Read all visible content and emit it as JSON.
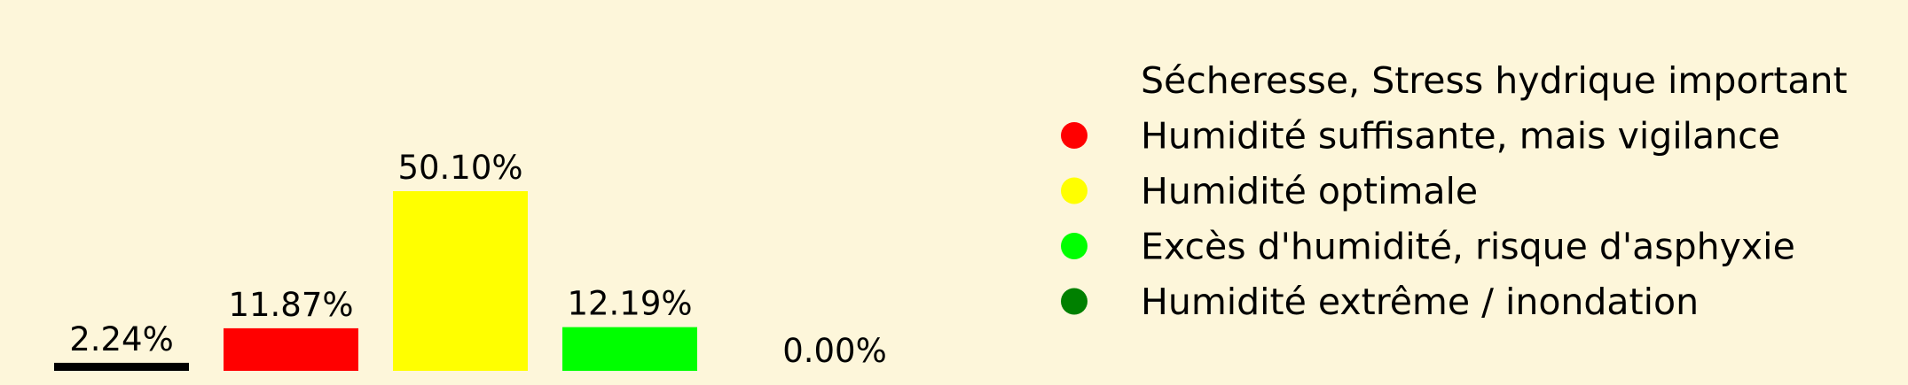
{
  "chart_data": {
    "type": "bar",
    "categories": [
      "Sécheresse, Stress hydrique important",
      "Humidité suffisante, mais vigilance",
      "Humidité optimale",
      "Excès d'humidité, risque d'asphyxie",
      "Humidité extrême / inondation"
    ],
    "values": [
      2.24,
      11.87,
      50.1,
      12.19,
      0.0
    ],
    "value_labels": [
      "2.24%",
      "11.87%",
      "50.10%",
      "12.19%",
      "0.00%"
    ],
    "colors": [
      "#000000",
      "#ff0000",
      "#ffff00",
      "#00ff00",
      "#008000"
    ],
    "legend_position": "right",
    "axes_visible": false,
    "grid": false
  },
  "colors": {
    "background": "#fdf6da"
  }
}
